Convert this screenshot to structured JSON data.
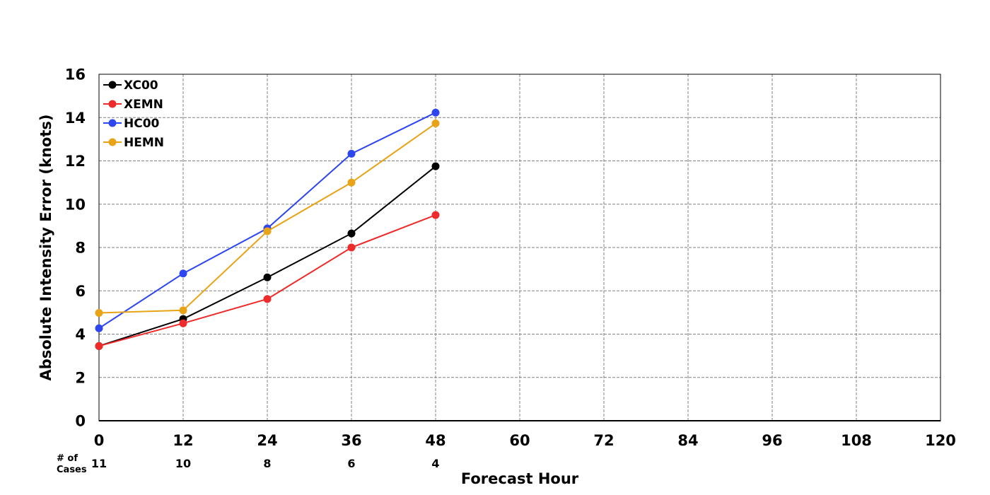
{
  "chart_data": {
    "type": "line",
    "title": "",
    "xlabel": "Forecast Hour",
    "ylabel": "Absolute Intensity Error (knots)",
    "x_ticks": [
      0,
      12,
      24,
      36,
      48,
      60,
      72,
      84,
      96,
      108,
      120
    ],
    "y_ticks": [
      0,
      2,
      4,
      6,
      8,
      10,
      12,
      14,
      16
    ],
    "xlim": [
      0,
      120
    ],
    "ylim": [
      0,
      16
    ],
    "grid": true,
    "legend_position": "top-left",
    "x": [
      0,
      12,
      24,
      36,
      48
    ],
    "series": [
      {
        "name": "XC00",
        "color": "#000000",
        "values": [
          3.45,
          4.7,
          6.62,
          8.65,
          11.75
        ]
      },
      {
        "name": "XEMN",
        "color": "#ee2a2a",
        "values": [
          3.45,
          4.5,
          5.62,
          8.0,
          9.5
        ]
      },
      {
        "name": "HC00",
        "color": "#2e46f0",
        "values": [
          4.27,
          6.8,
          8.88,
          12.33,
          14.23
        ]
      },
      {
        "name": "HEMN",
        "color": "#e8a317",
        "values": [
          4.98,
          5.1,
          8.75,
          11.0,
          13.73
        ]
      }
    ],
    "cases": {
      "label_line1": "# of",
      "label_line2": "Cases",
      "x": [
        0,
        12,
        24,
        36,
        48
      ],
      "counts": [
        11,
        10,
        8,
        6,
        4
      ]
    }
  }
}
